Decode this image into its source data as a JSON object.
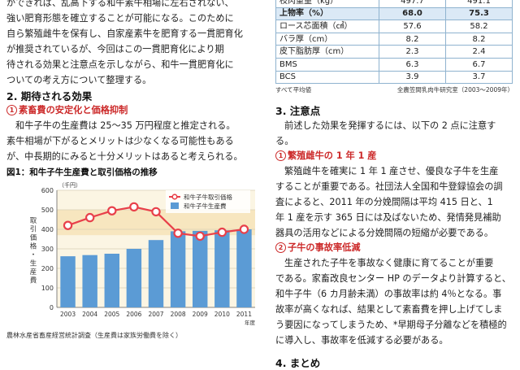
{
  "left": {
    "intro_lines": [
      "ができれば、乱高下する和牛素牛相場に左右されない、",
      "強い肥育形態を確立することが可能になる。このために",
      "自ら繁殖雌牛を保有し、自家産素牛を肥育する一貫肥育化",
      "が推奨されているが、今回はこの一貫肥育化により期",
      "待される効果と注意点を示しながら、和牛一貫肥育化に",
      "ついての考え方について整理する。"
    ],
    "section2_title": "2. 期待される効果",
    "sub1_num": "1",
    "sub1_title": "素畜費の安定化と価格抑制",
    "sub1_lines": [
      "和牛子牛の生産費は 25〜35 万円程度と推定される。",
      "素牛相場が下がるとメリットは少なくなる可能性もある",
      "が、中長期的にみると十分メリットはあると考えられる。"
    ],
    "fig_title": "図1：和牛子牛生産費と取引価格の推移",
    "fig_source": "農林水産省畜産経営統計調査（生産費は家族労働費を除く）"
  },
  "chart_data": {
    "type": "bar+line",
    "title": "図1：和牛子牛生産費と取引価格の推移",
    "y_unit": "（千円）",
    "ylabel": "取引価格・生産費",
    "x_unit": "年度",
    "categories": [
      "2003",
      "2004",
      "2005",
      "2006",
      "2007",
      "2008",
      "2009",
      "2010",
      "2011"
    ],
    "series": [
      {
        "name": "和牛子牛取引価格",
        "type": "line",
        "color": "#e8404a",
        "values": [
          420,
          460,
          495,
          515,
          490,
          380,
          365,
          385,
          400
        ]
      },
      {
        "name": "和牛子牛生産費",
        "type": "bar",
        "color": "#5b9bd5",
        "values": [
          262,
          268,
          275,
          300,
          345,
          390,
          392,
          395,
          400
        ]
      }
    ],
    "ylim": [
      0,
      600
    ],
    "yticks": [
      0,
      100,
      200,
      300,
      400,
      500,
      600
    ],
    "highlight_band": [
      370,
      500
    ],
    "legend": "top-right",
    "grid": true
  },
  "right": {
    "table": {
      "rows": [
        {
          "label": "枝肉重量（kg）",
          "v1": "497.7",
          "v2": "491.1",
          "hl": false
        },
        {
          "label": "上物率（%）",
          "v1": "68.0",
          "v2": "75.3",
          "hl": true
        },
        {
          "label": "ロース芯面積（㎠）",
          "v1": "57.6",
          "v2": "58.2",
          "hl": false
        },
        {
          "label": "バラ厚（cm）",
          "v1": "8.2",
          "v2": "8.2",
          "hl": false
        },
        {
          "label": "皮下脂肪厚（cm）",
          "v1": "2.3",
          "v2": "2.4",
          "hl": false
        },
        {
          "label": "BMS",
          "v1": "6.3",
          "v2": "6.7",
          "hl": false
        },
        {
          "label": "BCS",
          "v1": "3.9",
          "v2": "3.7",
          "hl": false
        }
      ],
      "note_left": "すべて平均値",
      "note_right": "全農笠間乳肉牛研究室（2003〜2009年）"
    },
    "section3_title": "3. 注意点",
    "section3_intro": "前述した効果を発揮するには、以下の 2 点に注意する。",
    "sub1_num": "1",
    "sub1_title": "繁殖雌牛の 1 年 1 産",
    "sub1_lines": [
      "繁殖雌牛を確実に 1 年 1 産させ、優良な子牛を生産",
      "することが重要である。社団法人全国和牛登録協会の調",
      "査によると、2011 年の分娩間隔は平均 415 日と、1",
      "年 1 産を示す 365 日には及ばないため、発情発見補助",
      "器具の活用などによる分娩間隔の短縮が必要である。"
    ],
    "sub2_num": "2",
    "sub2_title": "子牛の事故率低減",
    "sub2_lines": [
      "生産された子牛を事故なく健康に育てることが重要",
      "である。家畜改良センター HP のデータより計算すると、",
      "和牛子牛（6 カ月齢未満）の事故率は約 4％となる。事",
      "故率が高くなれば、結果として素畜費を押し上げてしま",
      "う要因になってしまうため、*早期母子分離などを積極的",
      "に導入し、事故率を低減する必要がある。"
    ],
    "section4_title": "4. まとめ"
  }
}
